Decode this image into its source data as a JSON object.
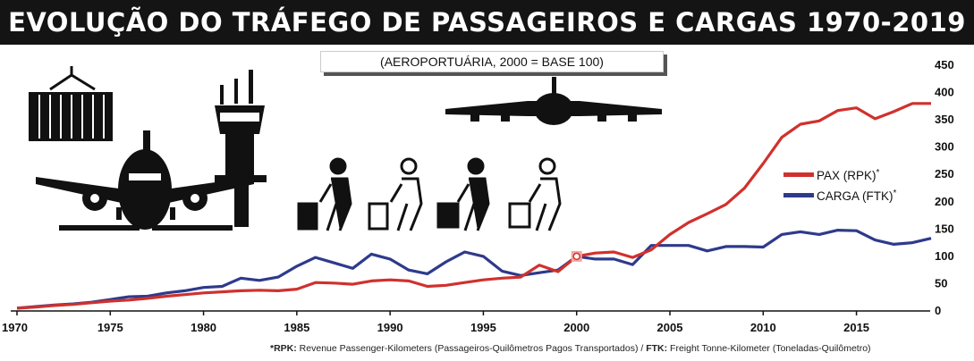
{
  "header": {
    "title": "EVOLUÇÃO DO TRÁFEGO DE PASSAGEIROS E CARGAS 1970-2019",
    "subtitle": "(AEROPORTUÁRIA, 2000 = BASE 100)"
  },
  "footnote": {
    "rpk_label": "*RPK:",
    "rpk_text": " Revenue Passenger-Kilometers (Passageiros-Quilômetros Pagos Transportados) / ",
    "ftk_label": "FTK:",
    "ftk_text": " Freight Tonne-Kilometer (Toneladas-Quilômetro)"
  },
  "icons": [
    "cargo-container-icon",
    "airplane-front-icon",
    "control-tower-icon",
    "passenger-luggage-icon",
    "airplane-top-icon"
  ],
  "chart_data": {
    "type": "line",
    "title": "EVOLUÇÃO DO TRÁFEGO DE PASSAGEIROS E CARGAS 1970-2019",
    "subtitle": "(AEROPORTUÁRIA, 2000 = BASE 100)",
    "xlabel": "",
    "ylabel": "",
    "xlim": [
      1970,
      2019
    ],
    "ylim": [
      0,
      450
    ],
    "x_ticks": [
      1970,
      1975,
      1980,
      1985,
      1990,
      1995,
      2000,
      2005,
      2010,
      2015
    ],
    "y_ticks": [
      0,
      50,
      100,
      150,
      200,
      250,
      300,
      350,
      400,
      450
    ],
    "grid": false,
    "legend_position": "right",
    "base_point": {
      "x": 2000,
      "y": 100
    },
    "x": [
      1970,
      1971,
      1972,
      1973,
      1974,
      1975,
      1976,
      1977,
      1978,
      1979,
      1980,
      1981,
      1982,
      1983,
      1984,
      1985,
      1986,
      1987,
      1988,
      1989,
      1990,
      1991,
      1992,
      1993,
      1994,
      1995,
      1996,
      1997,
      1998,
      1999,
      2000,
      2001,
      2002,
      2003,
      2004,
      2005,
      2006,
      2007,
      2008,
      2009,
      2010,
      2011,
      2012,
      2013,
      2014,
      2015,
      2016,
      2017,
      2018,
      2019
    ],
    "series": [
      {
        "name": "PAX (RPK)",
        "marker": "*",
        "color": "#d0312d",
        "values": [
          5,
          7,
          10,
          12,
          15,
          18,
          20,
          23,
          27,
          30,
          33,
          35,
          37,
          38,
          37,
          40,
          52,
          51,
          49,
          55,
          57,
          55,
          45,
          47,
          52,
          57,
          60,
          62,
          84,
          72,
          100,
          106,
          108,
          98,
          112,
          140,
          162,
          178,
          195,
          225,
          270,
          318,
          342,
          348,
          367,
          372,
          352,
          365,
          380,
          380
        ]
      },
      {
        "name": "CARGA (FTK)",
        "marker": "*",
        "color": "#2e3a8c",
        "values": [
          5,
          8,
          11,
          13,
          16,
          21,
          26,
          27,
          33,
          37,
          43,
          45,
          60,
          56,
          62,
          82,
          98,
          88,
          78,
          104,
          95,
          75,
          68,
          90,
          108,
          100,
          73,
          65,
          70,
          75,
          100,
          95,
          95,
          85,
          120,
          120,
          120,
          110,
          118,
          118,
          117,
          140,
          145,
          140,
          148,
          147,
          130,
          122,
          125,
          133
        ]
      }
    ]
  }
}
